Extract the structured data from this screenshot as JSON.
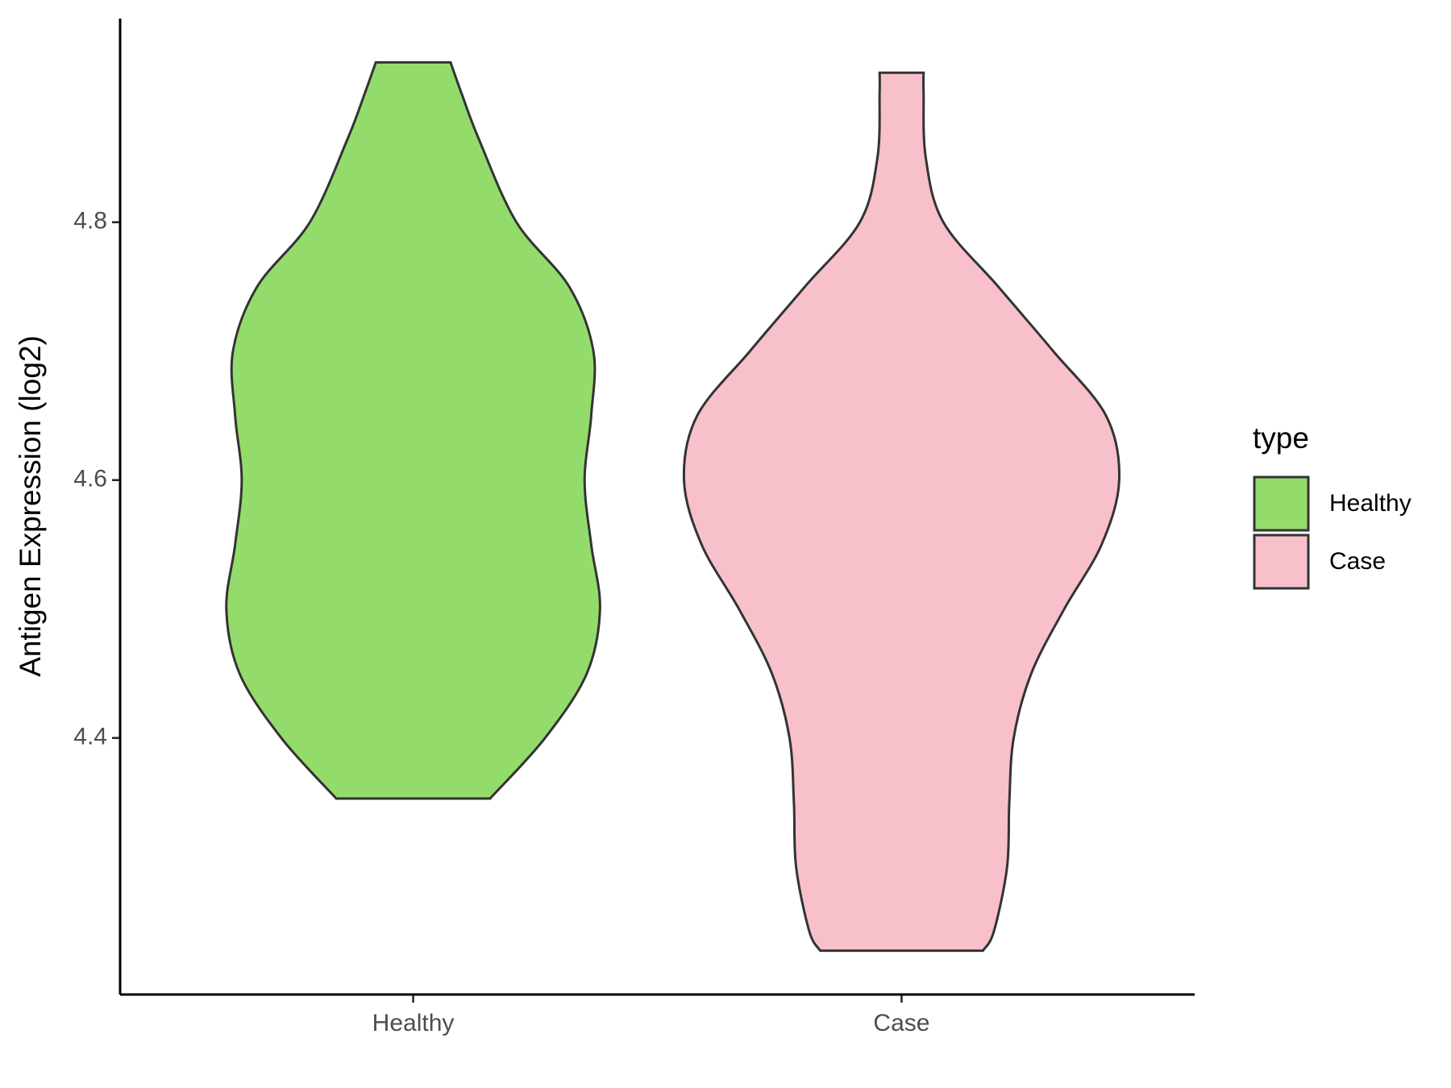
{
  "chart_data": {
    "type": "violin",
    "y_label": "Antigen Expression (log2)",
    "legend_title": "type",
    "categories": [
      "Healthy",
      "Case"
    ],
    "ylim": [
      4.201,
      4.958
    ],
    "yticks": [
      4.4,
      4.6,
      4.8
    ],
    "series": [
      {
        "name": "Healthy",
        "color": "#93dc6b",
        "y": [
          4.924,
          4.9,
          4.864,
          4.8,
          4.75,
          4.7,
          4.65,
          4.6,
          4.55,
          4.5,
          4.45,
          4.4,
          4.353
        ],
        "width": [
          0.17,
          0.22,
          0.3,
          0.47,
          0.71,
          0.82,
          0.81,
          0.78,
          0.81,
          0.85,
          0.79,
          0.6,
          0.35
        ]
      },
      {
        "name": "Case",
        "color": "#f8c0cb",
        "y": [
          4.916,
          4.9,
          4.85,
          4.8,
          4.75,
          4.7,
          4.65,
          4.6,
          4.55,
          4.5,
          4.45,
          4.4,
          4.35,
          4.3,
          4.25,
          4.235
        ],
        "width": [
          0.1,
          0.1,
          0.11,
          0.19,
          0.44,
          0.69,
          0.93,
          0.99,
          0.91,
          0.74,
          0.59,
          0.51,
          0.49,
          0.48,
          0.42,
          0.37
        ]
      }
    ]
  }
}
